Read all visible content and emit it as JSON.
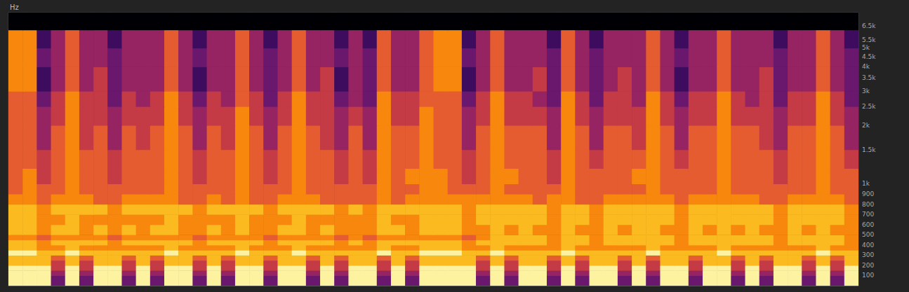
{
  "chart_data": {
    "type": "heatmap",
    "ylabel": "Hz",
    "tick_labels": "y",
    "grid": false,
    "ylim": [
      0,
      7600
    ],
    "yticks": [
      100,
      200,
      300,
      400,
      500,
      600,
      700,
      800,
      900,
      {
        "value": 1000,
        "label": "1k"
      },
      {
        "value": 1500,
        "label": "1.5k"
      },
      {
        "value": 2000,
        "label": "2k"
      },
      {
        "value": 2500,
        "label": "2.5k"
      },
      {
        "value": 3000,
        "label": "3k"
      },
      {
        "value": 3500,
        "label": "3.5k"
      },
      {
        "value": 4000,
        "label": "4k"
      },
      {
        "value": 4500,
        "label": "4.5k"
      },
      {
        "value": 5000,
        "label": "5k"
      },
      {
        "value": 5500,
        "label": "5.5k"
      },
      {
        "value": 6500,
        "label": "6.5k"
      }
    ],
    "y_bins": [
      0,
      100,
      150,
      200,
      250,
      300,
      350,
      400,
      450,
      500,
      600,
      700,
      800,
      900,
      1000,
      1200,
      1500,
      2000,
      2500,
      3000,
      4000,
      5000,
      6200,
      7600
    ],
    "cells": [
      [
        9,
        9,
        9,
        3,
        9,
        3,
        9,
        9,
        3,
        9,
        3,
        9,
        9,
        3,
        9,
        3,
        9,
        9,
        3,
        9,
        9,
        3,
        9,
        3,
        9,
        9,
        3,
        9,
        3,
        9,
        9,
        9,
        9,
        3,
        9,
        3,
        9,
        9,
        3,
        9,
        3,
        9,
        9,
        3,
        9,
        3,
        9,
        9,
        3,
        9,
        9,
        3,
        9,
        3,
        9,
        9,
        3,
        9,
        3,
        9
      ],
      [
        9,
        9,
        9,
        4,
        9,
        4,
        9,
        9,
        4,
        9,
        4,
        9,
        9,
        4,
        9,
        4,
        9,
        9,
        4,
        9,
        9,
        4,
        9,
        4,
        9,
        9,
        4,
        9,
        4,
        9,
        9,
        9,
        9,
        4,
        9,
        4,
        9,
        9,
        4,
        9,
        4,
        9,
        9,
        4,
        9,
        4,
        9,
        9,
        4,
        9,
        9,
        4,
        9,
        4,
        9,
        9,
        4,
        9,
        4,
        9
      ],
      [
        9,
        9,
        9,
        5,
        9,
        5,
        9,
        9,
        5,
        9,
        5,
        9,
        9,
        5,
        9,
        5,
        9,
        9,
        5,
        9,
        9,
        5,
        9,
        5,
        9,
        9,
        5,
        9,
        5,
        9,
        9,
        9,
        9,
        5,
        9,
        5,
        9,
        9,
        5,
        9,
        5,
        9,
        9,
        5,
        9,
        5,
        9,
        9,
        5,
        9,
        9,
        5,
        9,
        5,
        9,
        9,
        5,
        9,
        5,
        9
      ],
      [
        8,
        8,
        8,
        5,
        8,
        5,
        8,
        8,
        5,
        8,
        5,
        8,
        8,
        5,
        8,
        5,
        8,
        8,
        5,
        8,
        8,
        5,
        8,
        5,
        8,
        8,
        5,
        8,
        5,
        8,
        8,
        8,
        8,
        5,
        8,
        5,
        8,
        8,
        5,
        8,
        5,
        8,
        8,
        5,
        8,
        5,
        8,
        8,
        5,
        8,
        8,
        5,
        8,
        5,
        8,
        8,
        5,
        8,
        5,
        8
      ],
      [
        8,
        8,
        8,
        6,
        8,
        6,
        8,
        8,
        6,
        8,
        6,
        8,
        8,
        6,
        8,
        6,
        8,
        8,
        6,
        8,
        8,
        6,
        8,
        6,
        8,
        8,
        6,
        8,
        6,
        8,
        8,
        8,
        8,
        6,
        8,
        6,
        8,
        8,
        6,
        8,
        6,
        8,
        8,
        6,
        8,
        6,
        8,
        8,
        6,
        8,
        8,
        6,
        8,
        6,
        8,
        8,
        6,
        8,
        6,
        8
      ],
      [
        9,
        9,
        8,
        8,
        9,
        8,
        8,
        8,
        8,
        8,
        8,
        9,
        8,
        8,
        8,
        8,
        9,
        8,
        8,
        8,
        9,
        8,
        8,
        8,
        8,
        8,
        9,
        8,
        8,
        9,
        9,
        9,
        8,
        8,
        9,
        8,
        8,
        8,
        8,
        9,
        8,
        8,
        8,
        8,
        8,
        9,
        8,
        8,
        8,
        8,
        9,
        8,
        8,
        8,
        8,
        8,
        8,
        9,
        8,
        8
      ],
      [
        8,
        8,
        7,
        7,
        8,
        7,
        7,
        7,
        7,
        7,
        7,
        8,
        7,
        7,
        7,
        7,
        8,
        7,
        7,
        7,
        8,
        7,
        7,
        7,
        7,
        7,
        8,
        7,
        7,
        8,
        8,
        8,
        7,
        7,
        8,
        7,
        7,
        7,
        7,
        8,
        7,
        7,
        7,
        7,
        7,
        8,
        7,
        7,
        7,
        7,
        8,
        7,
        7,
        7,
        7,
        7,
        7,
        8,
        7,
        7
      ],
      [
        8,
        8,
        7,
        8,
        8,
        8,
        8,
        7,
        8,
        8,
        8,
        8,
        8,
        7,
        8,
        8,
        8,
        8,
        7,
        8,
        8,
        8,
        8,
        7,
        8,
        7,
        8,
        8,
        8,
        8,
        8,
        8,
        7,
        8,
        8,
        8,
        8,
        8,
        7,
        8,
        8,
        7,
        8,
        8,
        8,
        8,
        8,
        7,
        8,
        8,
        8,
        8,
        8,
        8,
        7,
        8,
        8,
        8,
        8,
        7
      ],
      [
        7,
        7,
        6,
        7,
        7,
        7,
        7,
        6,
        7,
        7,
        7,
        7,
        7,
        6,
        7,
        7,
        7,
        7,
        6,
        7,
        7,
        7,
        7,
        6,
        7,
        6,
        7,
        7,
        7,
        7,
        7,
        7,
        6,
        7,
        8,
        8,
        8,
        8,
        7,
        8,
        8,
        7,
        8,
        8,
        8,
        8,
        8,
        7,
        8,
        8,
        8,
        8,
        8,
        8,
        7,
        8,
        8,
        8,
        8,
        7
      ],
      [
        8,
        8,
        7,
        8,
        8,
        7,
        8,
        7,
        8,
        7,
        8,
        8,
        7,
        7,
        8,
        7,
        8,
        7,
        7,
        8,
        8,
        7,
        8,
        7,
        7,
        7,
        8,
        8,
        7,
        8,
        8,
        8,
        7,
        7,
        8,
        7,
        8,
        7,
        7,
        8,
        7,
        7,
        8,
        7,
        8,
        8,
        7,
        7,
        8,
        7,
        8,
        7,
        8,
        7,
        7,
        8,
        7,
        8,
        7,
        7
      ],
      [
        8,
        8,
        7,
        7,
        8,
        7,
        7,
        7,
        7,
        7,
        7,
        8,
        7,
        7,
        7,
        7,
        8,
        7,
        7,
        7,
        8,
        7,
        7,
        7,
        7,
        7,
        8,
        7,
        7,
        8,
        8,
        8,
        7,
        8,
        8,
        8,
        8,
        8,
        7,
        8,
        8,
        7,
        8,
        8,
        8,
        8,
        8,
        7,
        8,
        8,
        8,
        8,
        8,
        8,
        7,
        8,
        8,
        8,
        8,
        7
      ],
      [
        8,
        8,
        7,
        8,
        8,
        8,
        8,
        7,
        8,
        8,
        8,
        8,
        8,
        7,
        8,
        8,
        8,
        8,
        7,
        8,
        8,
        8,
        8,
        7,
        8,
        7,
        8,
        8,
        8,
        8,
        8,
        8,
        7,
        8,
        8,
        8,
        8,
        8,
        7,
        8,
        8,
        7,
        8,
        8,
        8,
        8,
        8,
        7,
        8,
        8,
        8,
        8,
        8,
        8,
        7,
        8,
        8,
        8,
        8,
        7
      ],
      [
        7,
        7,
        6,
        7,
        7,
        7,
        6,
        6,
        7,
        7,
        7,
        7,
        6,
        6,
        7,
        6,
        7,
        6,
        6,
        7,
        7,
        7,
        6,
        6,
        6,
        6,
        7,
        6,
        7,
        7,
        7,
        7,
        7,
        7,
        7,
        7,
        7,
        6,
        7,
        7,
        6,
        6,
        7,
        7,
        7,
        7,
        7,
        6,
        7,
        7,
        7,
        7,
        7,
        6,
        6,
        7,
        7,
        7,
        7,
        6
      ],
      [
        6,
        7,
        6,
        6,
        7,
        6,
        6,
        6,
        6,
        6,
        6,
        7,
        6,
        6,
        6,
        6,
        7,
        6,
        6,
        6,
        7,
        6,
        6,
        6,
        6,
        6,
        7,
        6,
        6,
        7,
        7,
        6,
        6,
        6,
        7,
        6,
        6,
        6,
        6,
        7,
        6,
        6,
        6,
        6,
        6,
        7,
        6,
        6,
        6,
        6,
        7,
        6,
        6,
        6,
        6,
        6,
        6,
        7,
        6,
        6
      ],
      [
        6,
        7,
        5,
        6,
        7,
        6,
        6,
        5,
        6,
        6,
        6,
        7,
        6,
        5,
        6,
        6,
        7,
        6,
        5,
        6,
        7,
        6,
        6,
        5,
        6,
        5,
        7,
        6,
        7,
        7,
        7,
        6,
        5,
        6,
        7,
        7,
        6,
        6,
        5,
        7,
        6,
        6,
        6,
        6,
        7,
        7,
        6,
        6,
        6,
        6,
        7,
        6,
        6,
        6,
        5,
        6,
        6,
        7,
        6,
        6
      ],
      [
        6,
        6,
        5,
        6,
        7,
        6,
        6,
        5,
        6,
        6,
        6,
        7,
        6,
        5,
        6,
        6,
        7,
        6,
        5,
        6,
        7,
        6,
        6,
        5,
        6,
        5,
        7,
        6,
        6,
        7,
        6,
        6,
        5,
        6,
        7,
        6,
        6,
        6,
        5,
        7,
        6,
        5,
        6,
        6,
        6,
        7,
        6,
        5,
        6,
        6,
        7,
        6,
        6,
        6,
        5,
        6,
        6,
        7,
        6,
        5
      ],
      [
        6,
        6,
        4,
        6,
        7,
        5,
        6,
        4,
        6,
        5,
        6,
        7,
        6,
        4,
        6,
        5,
        7,
        6,
        4,
        6,
        7,
        6,
        5,
        4,
        6,
        4,
        7,
        6,
        6,
        7,
        6,
        6,
        4,
        6,
        7,
        6,
        6,
        6,
        4,
        7,
        6,
        4,
        6,
        6,
        5,
        7,
        6,
        4,
        6,
        6,
        7,
        6,
        6,
        5,
        4,
        6,
        6,
        7,
        6,
        4
      ],
      [
        6,
        6,
        4,
        5,
        7,
        5,
        5,
        4,
        5,
        5,
        5,
        7,
        5,
        4,
        5,
        5,
        7,
        5,
        4,
        5,
        7,
        5,
        5,
        4,
        5,
        4,
        7,
        5,
        5,
        7,
        6,
        6,
        4,
        5,
        7,
        5,
        5,
        5,
        4,
        7,
        5,
        4,
        5,
        5,
        5,
        7,
        5,
        4,
        5,
        5,
        7,
        5,
        5,
        5,
        4,
        5,
        5,
        7,
        5,
        4
      ],
      [
        6,
        6,
        3,
        5,
        7,
        5,
        5,
        3,
        5,
        4,
        5,
        7,
        5,
        3,
        5,
        4,
        6,
        5,
        3,
        5,
        7,
        5,
        5,
        3,
        4,
        3,
        7,
        5,
        5,
        6,
        6,
        6,
        3,
        5,
        7,
        5,
        5,
        4,
        3,
        7,
        5,
        3,
        5,
        5,
        4,
        7,
        5,
        3,
        5,
        5,
        7,
        5,
        4,
        5,
        3,
        5,
        5,
        7,
        5,
        3
      ],
      [
        7,
        7,
        2,
        4,
        6,
        4,
        5,
        3,
        4,
        4,
        4,
        6,
        4,
        2,
        4,
        4,
        6,
        4,
        3,
        4,
        6,
        4,
        5,
        2,
        4,
        3,
        6,
        4,
        4,
        6,
        7,
        7,
        2,
        4,
        6,
        4,
        4,
        5,
        3,
        6,
        4,
        3,
        4,
        5,
        4,
        6,
        4,
        2,
        4,
        4,
        6,
        4,
        4,
        5,
        3,
        4,
        4,
        6,
        4,
        3
      ],
      [
        7,
        7,
        3,
        4,
        6,
        4,
        4,
        3,
        4,
        4,
        4,
        6,
        4,
        3,
        4,
        4,
        6,
        4,
        3,
        4,
        6,
        4,
        4,
        3,
        4,
        3,
        6,
        4,
        4,
        6,
        7,
        7,
        3,
        4,
        6,
        4,
        4,
        4,
        3,
        6,
        4,
        3,
        4,
        4,
        4,
        6,
        4,
        3,
        4,
        4,
        6,
        4,
        4,
        4,
        3,
        4,
        4,
        6,
        4,
        3
      ],
      [
        7,
        7,
        2,
        4,
        6,
        4,
        4,
        2,
        4,
        4,
        4,
        6,
        4,
        2,
        4,
        4,
        6,
        4,
        2,
        4,
        6,
        4,
        4,
        2,
        4,
        2,
        6,
        4,
        4,
        6,
        7,
        7,
        2,
        4,
        6,
        4,
        4,
        4,
        2,
        6,
        4,
        2,
        4,
        4,
        4,
        6,
        4,
        2,
        4,
        4,
        6,
        4,
        4,
        4,
        2,
        4,
        4,
        6,
        4,
        2
      ],
      [
        0,
        0,
        0,
        0,
        0,
        0,
        0,
        0,
        0,
        0,
        0,
        0,
        0,
        0,
        0,
        0,
        0,
        0,
        0,
        0,
        0,
        0,
        0,
        0,
        0,
        0,
        0,
        0,
        0,
        0,
        0,
        0,
        0,
        0,
        0,
        0,
        0,
        0,
        0,
        0,
        0,
        0,
        0,
        0,
        0,
        0,
        0,
        0,
        0,
        0,
        0,
        0,
        0,
        0,
        0,
        0,
        0,
        0,
        0,
        0
      ]
    ]
  }
}
